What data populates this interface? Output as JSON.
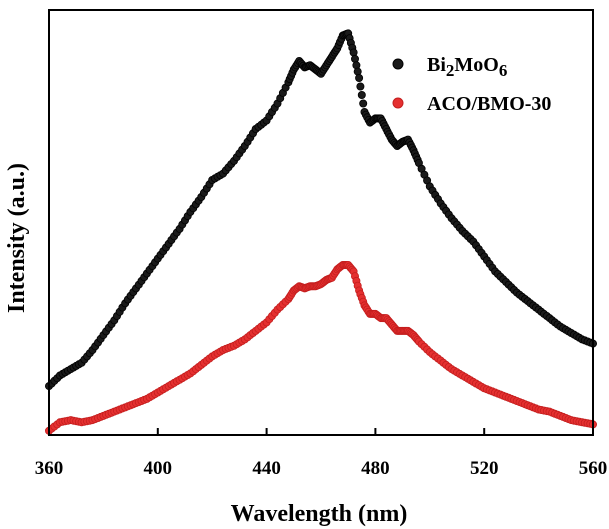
{
  "chart_data": {
    "type": "scatter",
    "title": "",
    "xlabel": "Wavelength (nm)",
    "ylabel": "Intensity (a.u.)",
    "xlim": [
      360,
      560
    ],
    "ylim": [
      0,
      100
    ],
    "xticks": [
      360,
      400,
      440,
      480,
      520,
      560
    ],
    "legend_position": "top-right",
    "series": [
      {
        "name": "Bi2MoO6",
        "label_base": "Bi",
        "label_sub1": "2",
        "label_mid": "MoO",
        "label_sub2": "6",
        "color": "#1a1a1a",
        "x": [
          360,
          364,
          368,
          372,
          376,
          380,
          384,
          388,
          392,
          396,
          400,
          404,
          408,
          412,
          416,
          420,
          424,
          428,
          432,
          436,
          440,
          444,
          448,
          450,
          452,
          454,
          456,
          458,
          460,
          462,
          464,
          466,
          468,
          470,
          472,
          474,
          476,
          478,
          480,
          482,
          484,
          486,
          488,
          490,
          492,
          494,
          496,
          500,
          504,
          508,
          512,
          516,
          520,
          524,
          528,
          532,
          536,
          540,
          544,
          548,
          552,
          556,
          560
        ],
        "y": [
          11.5,
          14,
          15.5,
          17,
          20,
          23.5,
          27,
          31,
          34.5,
          38,
          41.5,
          45,
          48.5,
          52.5,
          56,
          60,
          61.5,
          64.5,
          68,
          72,
          74,
          78,
          83,
          86,
          88,
          86.5,
          87,
          86,
          85,
          87,
          89,
          91,
          94,
          94.5,
          90,
          84,
          76,
          73.5,
          74.5,
          74.5,
          72,
          69.5,
          68,
          69,
          69.5,
          67,
          64,
          58.5,
          54.5,
          51,
          48,
          45.5,
          42,
          38.5,
          36,
          33.5,
          31.5,
          29.5,
          27.5,
          25.5,
          24,
          22.5,
          21.5
        ]
      },
      {
        "name": "ACO/BMO-30",
        "color": "#e53030",
        "x": [
          360,
          364,
          368,
          372,
          376,
          380,
          384,
          388,
          392,
          396,
          400,
          404,
          408,
          412,
          416,
          420,
          424,
          428,
          432,
          436,
          440,
          444,
          448,
          450,
          452,
          454,
          456,
          458,
          460,
          462,
          464,
          466,
          468,
          470,
          472,
          474,
          476,
          478,
          480,
          482,
          484,
          486,
          488,
          490,
          492,
          494,
          496,
          500,
          504,
          508,
          512,
          516,
          520,
          524,
          528,
          532,
          536,
          540,
          544,
          548,
          552,
          556,
          560
        ],
        "y": [
          1,
          3,
          3.5,
          3,
          3.5,
          4.5,
          5.5,
          6.5,
          7.5,
          8.5,
          10,
          11.5,
          13,
          14.5,
          16.5,
          18.5,
          20,
          21,
          22.5,
          24.5,
          26.5,
          29.5,
          32,
          34,
          35,
          34.5,
          35,
          35,
          35.5,
          36.5,
          37,
          39,
          40,
          40,
          38.5,
          34,
          30.5,
          28.5,
          28.5,
          27.5,
          27.5,
          26,
          24.5,
          24.5,
          24.5,
          23.5,
          22,
          19.5,
          17.5,
          15.5,
          14,
          12.5,
          11,
          10,
          9,
          8,
          7,
          6,
          5.5,
          4.5,
          3.5,
          3,
          2.5
        ]
      }
    ]
  }
}
